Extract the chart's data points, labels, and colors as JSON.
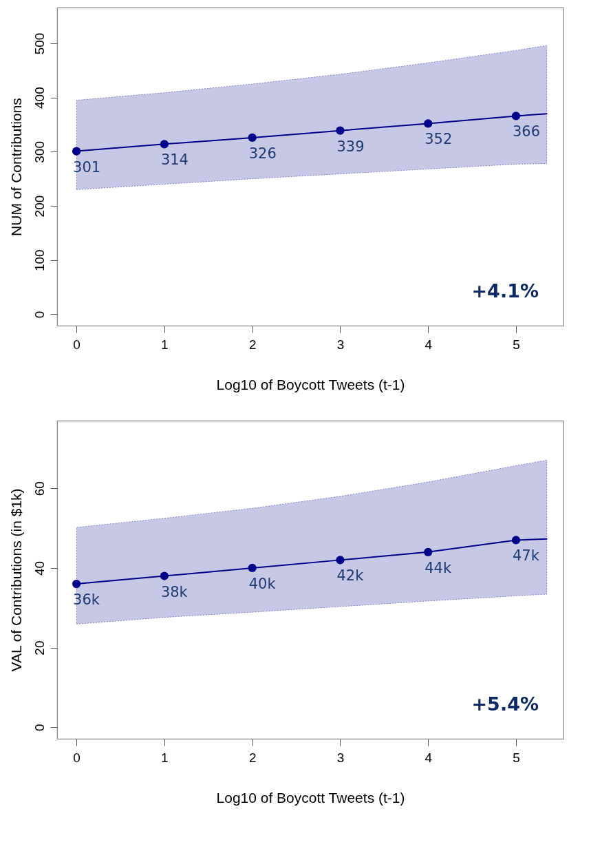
{
  "chart_data": [
    {
      "type": "line",
      "xlabel": "Log10 of Boycott Tweets (t-1)",
      "ylabel": "NUM of Contributions",
      "xlim": [
        -0.22,
        5.54
      ],
      "xticks": [
        0,
        1,
        2,
        3,
        4,
        5
      ],
      "ylim": [
        -21,
        566
      ],
      "yticks": [
        0,
        100,
        200,
        300,
        400,
        500
      ],
      "grid": false,
      "marker": "circle",
      "annotations": [
        "+4.1%"
      ],
      "series": [
        {
          "type": "line",
          "marker": "none",
          "color": "#00008b",
          "x": [
            0,
            1,
            2,
            3,
            4,
            5,
            5.35
          ],
          "values": [
            301,
            314,
            326,
            339,
            352,
            366,
            370
          ],
          "lower": [
            230,
            240,
            250,
            259,
            268,
            277,
            278
          ],
          "upper": [
            395,
            409,
            425,
            443,
            464,
            487,
            496
          ]
        },
        {
          "type": "scatter",
          "color": "#00008b",
          "x": [
            0,
            1,
            2,
            3,
            4,
            5
          ],
          "values": [
            301,
            314,
            326,
            339,
            352,
            366
          ],
          "value_labels": [
            "301",
            "314",
            "326",
            "339",
            "352",
            "366"
          ]
        }
      ]
    },
    {
      "type": "line",
      "xlabel": "Log10 of Boycott Tweets (t-1)",
      "ylabel": "VAL of Contributions (in $1k)",
      "xlim": [
        -0.22,
        5.54
      ],
      "xticks": [
        0,
        1,
        2,
        3,
        4,
        5
      ],
      "ylim": [
        -2.9,
        77
      ],
      "yticks": [
        0,
        20,
        40,
        60
      ],
      "grid": false,
      "marker": "circle",
      "annotations": [
        "+5.4%"
      ],
      "series": [
        {
          "type": "line",
          "marker": "none",
          "color": "#00008b",
          "x": [
            0,
            1,
            2,
            3,
            4,
            5,
            5.35
          ],
          "values": [
            36,
            38,
            40,
            42,
            44,
            47,
            47.3
          ],
          "lower": [
            25.9,
            27.6,
            28.9,
            30.3,
            31.7,
            33,
            33.4
          ],
          "upper": [
            50.2,
            52.5,
            55,
            58,
            61.6,
            65.7,
            67.1
          ]
        },
        {
          "type": "scatter",
          "color": "#00008b",
          "x": [
            0,
            1,
            2,
            3,
            4,
            5
          ],
          "values": [
            36,
            38,
            40,
            42,
            44,
            47
          ],
          "value_labels": [
            "36k",
            "38k",
            "40k",
            "42k",
            "44k",
            "47k"
          ]
        }
      ]
    }
  ]
}
